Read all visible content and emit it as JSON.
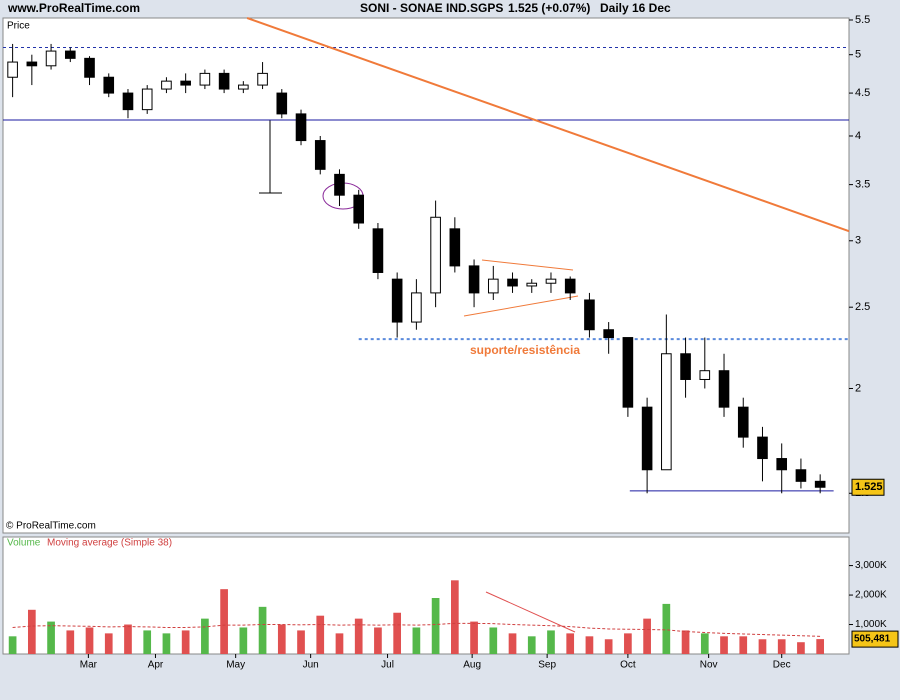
{
  "header": {
    "site": "www.ProRealTime.com",
    "symbol": "SONI - SONAE IND.SGPS",
    "quote": "1.525 (+0.07%)",
    "period": "Daily",
    "date": "16 Dec"
  },
  "chart_data": {
    "type": "candlestick",
    "y_label": "Price",
    "copyright": "© ProRealTime.com",
    "log_scale": true,
    "categories": [
      null,
      null,
      null,
      null,
      null,
      null,
      null,
      null,
      null,
      null,
      null,
      null,
      null,
      null,
      null,
      null,
      null,
      null,
      null,
      null,
      null,
      null,
      null,
      null,
      null,
      null,
      null,
      null,
      null,
      null,
      null,
      null,
      null,
      null,
      null,
      null,
      null,
      null,
      null,
      null,
      null,
      null,
      null
    ],
    "open": [
      4.7,
      4.9,
      4.85,
      5.05,
      4.95,
      4.7,
      4.5,
      4.3,
      4.55,
      4.65,
      4.6,
      4.75,
      4.55,
      4.6,
      4.5,
      4.25,
      3.95,
      3.6,
      3.4,
      3.1,
      2.7,
      2.4,
      2.6,
      3.1,
      2.8,
      2.6,
      2.7,
      2.65,
      2.67,
      2.7,
      2.55,
      2.35,
      2.3,
      1.9,
      1.6,
      2.2,
      2.05,
      2.1,
      1.9,
      1.75,
      1.65,
      1.6,
      1.55
    ],
    "high": [
      5.15,
      5.0,
      5.15,
      5.1,
      4.98,
      4.75,
      4.55,
      4.6,
      4.7,
      4.75,
      4.8,
      4.8,
      4.65,
      4.9,
      4.55,
      4.3,
      4.0,
      3.65,
      3.45,
      3.15,
      2.75,
      2.7,
      3.35,
      3.2,
      2.85,
      2.8,
      2.75,
      2.7,
      2.75,
      2.72,
      2.6,
      2.4,
      2.3,
      1.95,
      2.45,
      2.3,
      2.3,
      2.2,
      1.95,
      1.8,
      1.72,
      1.65,
      1.58
    ],
    "low": [
      4.45,
      4.6,
      4.8,
      4.9,
      4.6,
      4.45,
      4.2,
      4.25,
      4.5,
      4.5,
      4.55,
      4.5,
      4.5,
      4.55,
      4.2,
      3.9,
      3.6,
      3.3,
      3.1,
      2.7,
      2.3,
      2.35,
      2.5,
      2.75,
      2.5,
      2.55,
      2.6,
      2.6,
      2.6,
      2.55,
      2.3,
      2.2,
      1.85,
      1.5,
      1.6,
      1.95,
      2.0,
      1.85,
      1.7,
      1.55,
      1.5,
      1.52,
      1.5
    ],
    "close": [
      4.9,
      4.85,
      5.05,
      4.95,
      4.7,
      4.5,
      4.3,
      4.55,
      4.65,
      4.6,
      4.75,
      4.55,
      4.6,
      4.75,
      4.25,
      3.95,
      3.65,
      3.4,
      3.15,
      2.75,
      2.4,
      2.6,
      3.2,
      2.8,
      2.6,
      2.7,
      2.65,
      2.67,
      2.7,
      2.6,
      2.35,
      2.3,
      1.9,
      1.6,
      2.2,
      2.05,
      2.1,
      1.9,
      1.75,
      1.65,
      1.6,
      1.55,
      1.525
    ],
    "up_color": "#ffffff",
    "down_color": "#000000",
    "xlim": [
      -0.5,
      43.5
    ],
    "xticks": [
      {
        "value": 3.94,
        "label": "Mar"
      },
      {
        "value": 7.43,
        "label": "Apr"
      },
      {
        "value": 11.6,
        "label": "May"
      },
      {
        "value": 15.5,
        "label": "Jun"
      },
      {
        "value": 19.5,
        "label": "Jul"
      },
      {
        "value": 23.9,
        "label": "Aug"
      },
      {
        "value": 27.8,
        "label": "Sep"
      },
      {
        "value": 32,
        "label": "Oct"
      },
      {
        "value": 36.2,
        "label": "Nov"
      },
      {
        "value": 40,
        "label": "Dec"
      }
    ],
    "ylim": [
      1.345,
      5.53
    ],
    "yticks": [
      1.5,
      2,
      2.5,
      3,
      3.5,
      4,
      4.5,
      5,
      5.5
    ],
    "lines": [
      {
        "x": [
          -0.5,
          43.5
        ],
        "y": [
          5.1,
          5.1
        ],
        "color": "#2233aa",
        "dash": true
      },
      {
        "x": [
          -0.5,
          43.5
        ],
        "y": [
          4.18,
          4.18
        ],
        "color": "#1a1aa0",
        "dash": false
      },
      {
        "x": [
          12.2,
          43.5
        ],
        "y": [
          5.53,
          3.08
        ],
        "color": "#f07a3a",
        "dash": false
      },
      {
        "x": [
          18.0,
          43.5
        ],
        "y": [
          2.29,
          2.29
        ],
        "color": "#5a8adc",
        "dash": true
      },
      {
        "x": [
          32.1,
          42.7
        ],
        "y": [
          1.51,
          1.51
        ],
        "color": "#1a1aa0",
        "dash": false
      }
    ],
    "annotation": "suporte/resistência",
    "volume": {
      "title_volume": "Volume",
      "title_ma": "Moving average (Simple 38)",
      "values": [
        600,
        1500,
        1100,
        800,
        900,
        700,
        1000,
        800,
        700,
        800,
        1200,
        2200,
        900,
        1600,
        1000,
        800,
        1300,
        700,
        1200,
        900,
        1400,
        900,
        1900,
        2500,
        1100,
        900,
        700,
        600,
        800,
        700,
        600,
        500,
        700,
        1200,
        1700,
        800,
        700,
        600,
        600,
        500,
        500,
        400,
        505.481
      ],
      "ma": [
        900,
        950,
        960,
        950,
        940,
        920,
        930,
        920,
        900,
        900,
        920,
        980,
        980,
        1000,
        1000,
        990,
        1000,
        980,
        990,
        980,
        990,
        980,
        1000,
        1040,
        1040,
        1030,
        1000,
        980,
        960,
        930,
        880,
        850,
        840,
        830,
        820,
        760,
        730,
        700,
        680,
        660,
        640,
        620,
        600
      ],
      "last_label": "505,481",
      "up_color": "#55b84a",
      "down_color": "#e05050",
      "ma_color": "#d04040",
      "ylim": [
        0,
        3970
      ],
      "yticks": [
        {
          "value": 1000,
          "label": "1,000K"
        },
        {
          "value": 2000,
          "label": "2,000K"
        },
        {
          "value": 3000,
          "label": "3,000K"
        }
      ]
    }
  }
}
